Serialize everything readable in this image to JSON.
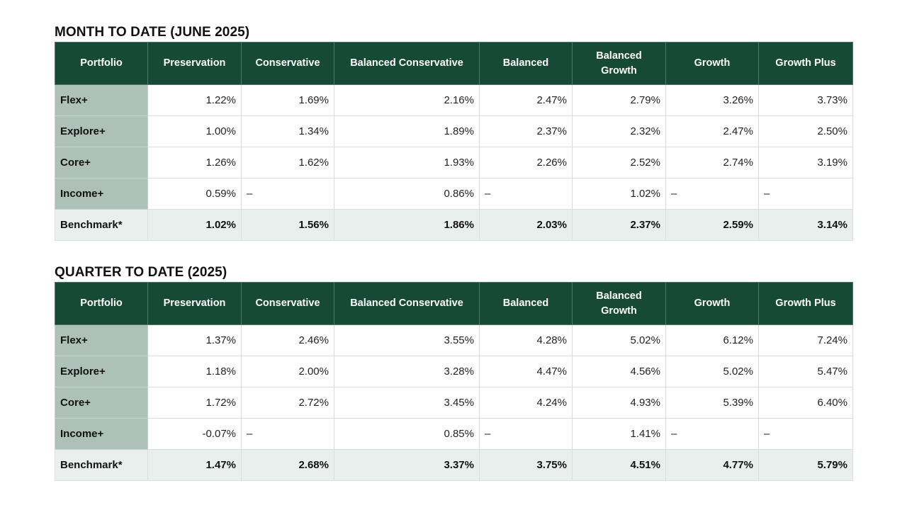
{
  "columns": [
    "Portfolio",
    "Preservation",
    "Conservative",
    "Balanced Conservative",
    "Balanced",
    "Balanced Growth",
    "Growth",
    "Growth Plus"
  ],
  "mtd": {
    "title": "MONTH TO DATE (JUNE 2025)",
    "rows": [
      {
        "name": "Flex+",
        "values": [
          "1.22%",
          "1.69%",
          "2.16%",
          "2.47%",
          "2.79%",
          "3.26%",
          "3.73%"
        ]
      },
      {
        "name": "Explore+",
        "values": [
          "1.00%",
          "1.34%",
          "1.89%",
          "2.37%",
          "2.32%",
          "2.47%",
          "2.50%"
        ]
      },
      {
        "name": "Core+",
        "values": [
          "1.26%",
          "1.62%",
          "1.93%",
          "2.26%",
          "2.52%",
          "2.74%",
          "3.19%"
        ]
      },
      {
        "name": "Income+",
        "values": [
          "0.59%",
          "–",
          "0.86%",
          "–",
          "1.02%",
          "–",
          "–"
        ]
      },
      {
        "name": "Benchmark*",
        "values": [
          "1.02%",
          "1.56%",
          "1.86%",
          "2.03%",
          "2.37%",
          "2.59%",
          "3.14%"
        ]
      }
    ]
  },
  "qtd": {
    "title": "QUARTER TO DATE (2025)",
    "rows": [
      {
        "name": "Flex+",
        "values": [
          "1.37%",
          "2.46%",
          "3.55%",
          "4.28%",
          "5.02%",
          "6.12%",
          "7.24%"
        ]
      },
      {
        "name": "Explore+",
        "values": [
          "1.18%",
          "2.00%",
          "3.28%",
          "4.47%",
          "4.56%",
          "5.02%",
          "5.47%"
        ]
      },
      {
        "name": "Core+",
        "values": [
          "1.72%",
          "2.72%",
          "3.45%",
          "4.24%",
          "4.93%",
          "5.39%",
          "6.40%"
        ]
      },
      {
        "name": "Income+",
        "values": [
          "-0.07%",
          "–",
          "0.85%",
          "–",
          "1.41%",
          "–",
          "–"
        ]
      },
      {
        "name": "Benchmark*",
        "values": [
          "1.47%",
          "2.68%",
          "3.37%",
          "3.75%",
          "4.51%",
          "4.77%",
          "5.79%"
        ]
      }
    ]
  },
  "colors": {
    "header_bg": "#164a36",
    "rowhead_bg": "#adc1b8",
    "benchmark_bg": "#e8efec"
  }
}
